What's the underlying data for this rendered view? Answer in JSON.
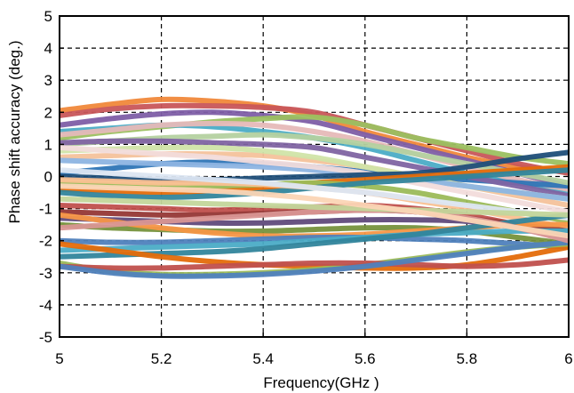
{
  "chart_data": {
    "type": "line",
    "title": "",
    "xlabel": "Frequency(GHz )",
    "ylabel": "Phase shift accuracy (deg.)",
    "xlim": [
      5,
      6
    ],
    "ylim": [
      -5,
      5
    ],
    "xticks": [
      "5",
      "5.2",
      "5.4",
      "5.6",
      "5.8",
      "6"
    ],
    "yticks": [
      "5",
      "4",
      "3",
      "2",
      "1",
      "0",
      "-1",
      "-2",
      "-3",
      "-4",
      "-5"
    ],
    "grid": true,
    "grid_style": "dashed",
    "legend": false,
    "x": [
      5.0,
      5.1,
      5.2,
      5.3,
      5.4,
      5.5,
      5.6,
      5.7,
      5.8,
      5.9,
      6.0
    ],
    "series": [
      {
        "color": "#F0883A",
        "values": [
          2.05,
          2.25,
          2.4,
          2.35,
          2.2,
          1.9,
          1.4,
          1.0,
          0.6,
          0.3,
          0.15
        ]
      },
      {
        "color": "#C8565A",
        "values": [
          1.9,
          2.1,
          2.2,
          2.2,
          2.15,
          2.0,
          1.6,
          1.2,
          0.8,
          0.4,
          0.1
        ]
      },
      {
        "color": "#7E5EA6",
        "values": [
          1.6,
          1.8,
          1.95,
          2.0,
          1.9,
          1.7,
          1.3,
          0.9,
          0.5,
          0.1,
          -0.3
        ]
      },
      {
        "color": "#9BC060",
        "values": [
          1.2,
          1.4,
          1.55,
          1.7,
          1.8,
          1.85,
          1.6,
          1.2,
          0.9,
          0.6,
          0.4
        ]
      },
      {
        "color": "#4BACC6",
        "values": [
          1.4,
          1.5,
          1.6,
          1.55,
          1.4,
          1.2,
          0.9,
          0.5,
          0.1,
          -0.2,
          -0.5
        ]
      },
      {
        "color": "#E6B9B8",
        "values": [
          1.3,
          1.45,
          1.6,
          1.65,
          1.6,
          1.4,
          1.1,
          0.7,
          0.3,
          -0.1,
          -0.4
        ]
      },
      {
        "color": "#2E75B6",
        "values": [
          0.1,
          0.25,
          0.4,
          0.45,
          0.4,
          0.3,
          0.15,
          0.0,
          -0.1,
          -0.2,
          -0.3
        ]
      },
      {
        "color": "#B4D1A0",
        "values": [
          1.0,
          1.1,
          1.2,
          1.25,
          1.3,
          1.2,
          1.0,
          0.7,
          0.4,
          0.1,
          -0.2
        ]
      },
      {
        "color": "#8064A2",
        "values": [
          1.05,
          1.1,
          1.1,
          1.05,
          1.0,
          0.9,
          0.6,
          0.3,
          0.0,
          -0.3,
          -0.6
        ]
      },
      {
        "color": "#F4C29B",
        "values": [
          0.6,
          0.65,
          0.7,
          0.7,
          0.65,
          0.5,
          0.3,
          0.0,
          -0.3,
          -0.6,
          -0.9
        ]
      },
      {
        "color": "#D0E4A8",
        "values": [
          0.8,
          0.85,
          0.9,
          0.9,
          0.8,
          0.6,
          0.3,
          0.0,
          -0.3,
          -0.5,
          -0.7
        ]
      },
      {
        "color": "#8DB4E2",
        "values": [
          0.5,
          0.45,
          0.4,
          0.35,
          0.3,
          0.2,
          0.05,
          -0.1,
          -0.3,
          -0.5,
          -0.7
        ]
      },
      {
        "color": "#F2DCDB",
        "values": [
          0.9,
          0.8,
          0.7,
          0.6,
          0.45,
          0.3,
          0.1,
          -0.2,
          -0.5,
          -0.8,
          -1.1
        ]
      },
      {
        "color": "#1F4E79",
        "values": [
          0.0,
          -0.05,
          -0.1,
          -0.1,
          -0.05,
          0.0,
          0.05,
          0.1,
          0.3,
          0.55,
          0.75
        ]
      },
      {
        "color": "#E46C0A",
        "values": [
          -0.4,
          -0.45,
          -0.5,
          -0.45,
          -0.35,
          -0.2,
          -0.1,
          0.0,
          0.1,
          0.2,
          0.3
        ]
      },
      {
        "color": "#9BBB59",
        "values": [
          -0.2,
          -0.25,
          -0.3,
          -0.3,
          -0.25,
          -0.2,
          -0.3,
          -0.5,
          -0.8,
          -1.1,
          -1.4
        ]
      },
      {
        "color": "#31859C",
        "values": [
          -0.5,
          -0.6,
          -0.65,
          -0.6,
          -0.5,
          -0.35,
          -0.2,
          -0.1,
          0.0,
          0.1,
          0.2
        ]
      },
      {
        "color": "#FAC090",
        "values": [
          -0.1,
          -0.15,
          -0.2,
          -0.2,
          -0.25,
          -0.35,
          -0.5,
          -0.75,
          -1.0,
          -1.3,
          -1.6
        ]
      },
      {
        "color": "#DCE6F2",
        "values": [
          0.2,
          0.1,
          0.0,
          -0.1,
          -0.2,
          -0.35,
          -0.5,
          -0.7,
          -0.9,
          -1.1,
          -1.3
        ]
      },
      {
        "color": "#C0504D",
        "values": [
          -0.9,
          -0.95,
          -1.0,
          -1.05,
          -1.0,
          -0.95,
          -0.9,
          -1.0,
          -1.2,
          -1.5,
          -1.8
        ]
      },
      {
        "color": "#953735",
        "values": [
          -1.1,
          -1.15,
          -1.2,
          -1.2,
          -1.15,
          -1.1,
          -1.05,
          -1.1,
          -1.3,
          -1.5,
          -1.7
        ]
      },
      {
        "color": "#604A7B",
        "values": [
          -1.3,
          -1.35,
          -1.4,
          -1.45,
          -1.45,
          -1.4,
          -1.35,
          -1.35,
          -1.4,
          -1.6,
          -1.9
        ]
      },
      {
        "color": "#76923C",
        "values": [
          -1.5,
          -1.6,
          -1.65,
          -1.7,
          -1.7,
          -1.65,
          -1.6,
          -1.6,
          -1.7,
          -1.9,
          -2.1
        ]
      },
      {
        "color": "#F79646",
        "values": [
          -1.2,
          -1.4,
          -1.6,
          -1.75,
          -1.85,
          -1.85,
          -1.8,
          -1.7,
          -1.6,
          -1.5,
          -1.5
        ]
      },
      {
        "color": "#4F81BD",
        "values": [
          -2.0,
          -2.05,
          -2.05,
          -2.0,
          -1.95,
          -1.9,
          -1.9,
          -1.95,
          -2.0,
          -2.1,
          -2.2
        ]
      },
      {
        "color": "#4BACC6",
        "values": [
          -2.3,
          -2.25,
          -2.2,
          -2.15,
          -2.1,
          -2.0,
          -1.9,
          -1.8,
          -1.75,
          -1.7,
          -1.7
        ]
      },
      {
        "color": "#31859C",
        "values": [
          -2.5,
          -2.45,
          -2.4,
          -2.35,
          -2.25,
          -2.1,
          -1.95,
          -1.8,
          -1.6,
          -1.4,
          -1.2
        ]
      },
      {
        "color": "#E46C0A",
        "values": [
          -2.1,
          -2.3,
          -2.5,
          -2.65,
          -2.75,
          -2.8,
          -2.85,
          -2.85,
          -2.75,
          -2.5,
          -2.2
        ]
      },
      {
        "color": "#9BBB59",
        "values": [
          -2.7,
          -2.95,
          -3.05,
          -3.05,
          -3.0,
          -2.9,
          -2.75,
          -2.55,
          -2.35,
          -2.2,
          -2.1
        ]
      },
      {
        "color": "#C0504D",
        "values": [
          -2.8,
          -2.85,
          -2.85,
          -2.8,
          -2.75,
          -2.7,
          -2.7,
          -2.75,
          -2.8,
          -2.75,
          -2.6
        ]
      },
      {
        "color": "#4F81BD",
        "values": [
          -2.8,
          -3.0,
          -3.1,
          -3.1,
          -3.05,
          -2.95,
          -2.8,
          -2.6,
          -2.4,
          -2.2,
          -2.05
        ]
      },
      {
        "color": "#D99694",
        "values": [
          -1.6,
          -1.5,
          -1.4,
          -1.3,
          -1.2,
          -1.1,
          -1.05,
          -1.1,
          -1.3,
          -1.6,
          -2.0
        ]
      },
      {
        "color": "#C3D69B",
        "values": [
          -0.7,
          -0.75,
          -0.8,
          -0.85,
          -0.9,
          -0.95,
          -1.0,
          -1.05,
          -1.1,
          -1.15,
          -1.2
        ]
      },
      {
        "color": "#FBD5B5",
        "values": [
          -0.3,
          -0.35,
          -0.4,
          -0.45,
          -0.55,
          -0.7,
          -0.9,
          -1.1,
          -1.35,
          -1.6,
          -1.85
        ]
      }
    ]
  }
}
